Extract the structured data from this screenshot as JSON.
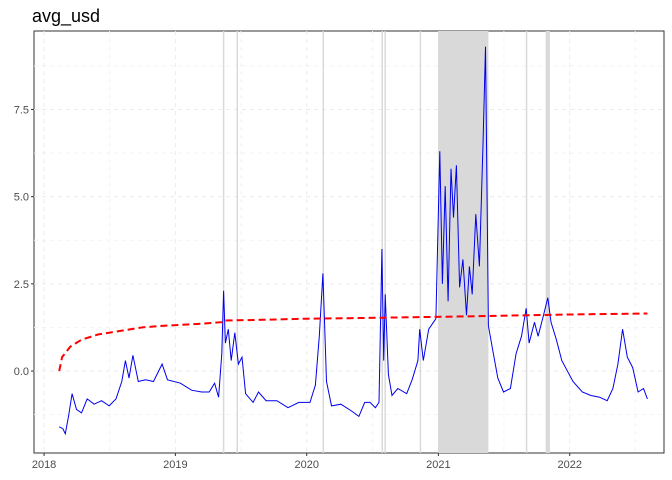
{
  "chart_data": {
    "type": "line",
    "title": "avg_usd",
    "xlabel": "",
    "ylabel": "",
    "x_range": [
      "2017-12-04",
      "2022-09-20"
    ],
    "ylim": [
      -2.35,
      9.75
    ],
    "grid": true,
    "legend": "none",
    "x_ticks": [
      "2018",
      "2019",
      "2020",
      "2021",
      "2022"
    ],
    "y_ticks": [
      "0.0",
      "2.5",
      "5.0",
      "7.5"
    ],
    "shaded_intervals": [
      [
        "2019-05-13",
        "2019-05-17"
      ],
      [
        "2019-06-20",
        "2019-06-24"
      ],
      [
        "2020-02-14",
        "2020-02-18"
      ],
      [
        "2020-07-27",
        "2020-07-31"
      ],
      [
        "2020-08-04",
        "2020-08-08"
      ],
      [
        "2020-11-10",
        "2020-11-14"
      ],
      [
        "2020-12-31",
        "2021-05-20"
      ],
      [
        "2021-09-01",
        "2021-09-05"
      ],
      [
        "2021-10-26",
        "2021-11-07"
      ]
    ],
    "series": [
      {
        "style": "solid",
        "color": "#0000ee",
        "points": [
          [
            "2018-02-12",
            -1.6
          ],
          [
            "2018-02-22",
            -1.65
          ],
          [
            "2018-03-01",
            -1.8
          ],
          [
            "2018-03-10",
            -1.3
          ],
          [
            "2018-03-20",
            -0.65
          ],
          [
            "2018-04-01",
            -1.1
          ],
          [
            "2018-04-15",
            -1.2
          ],
          [
            "2018-05-01",
            -0.8
          ],
          [
            "2018-05-20",
            -0.95
          ],
          [
            "2018-06-10",
            -0.85
          ],
          [
            "2018-07-01",
            -1.0
          ],
          [
            "2018-07-20",
            -0.8
          ],
          [
            "2018-08-05",
            -0.3
          ],
          [
            "2018-08-15",
            0.3
          ],
          [
            "2018-08-25",
            -0.2
          ],
          [
            "2018-09-05",
            0.45
          ],
          [
            "2018-09-20",
            -0.3
          ],
          [
            "2018-10-10",
            -0.25
          ],
          [
            "2018-11-01",
            -0.3
          ],
          [
            "2018-11-25",
            0.2
          ],
          [
            "2018-12-10",
            -0.25
          ],
          [
            "2019-01-15",
            -0.35
          ],
          [
            "2019-02-15",
            -0.55
          ],
          [
            "2019-03-15",
            -0.6
          ],
          [
            "2019-04-05",
            -0.6
          ],
          [
            "2019-04-20",
            -0.35
          ],
          [
            "2019-05-01",
            -0.75
          ],
          [
            "2019-05-10",
            0.5
          ],
          [
            "2019-05-15",
            2.3
          ],
          [
            "2019-05-20",
            0.8
          ],
          [
            "2019-05-28",
            1.2
          ],
          [
            "2019-06-05",
            0.3
          ],
          [
            "2019-06-15",
            1.1
          ],
          [
            "2019-06-25",
            0.2
          ],
          [
            "2019-07-05",
            0.4
          ],
          [
            "2019-07-15",
            -0.65
          ],
          [
            "2019-08-05",
            -0.9
          ],
          [
            "2019-08-20",
            -0.6
          ],
          [
            "2019-09-10",
            -0.85
          ],
          [
            "2019-10-10",
            -0.85
          ],
          [
            "2019-11-10",
            -1.05
          ],
          [
            "2019-12-10",
            -0.9
          ],
          [
            "2020-01-10",
            -0.9
          ],
          [
            "2020-01-25",
            -0.4
          ],
          [
            "2020-02-05",
            1.0
          ],
          [
            "2020-02-15",
            2.8
          ],
          [
            "2020-02-25",
            -0.3
          ],
          [
            "2020-03-10",
            -1.0
          ],
          [
            "2020-04-05",
            -0.95
          ],
          [
            "2020-05-05",
            -1.15
          ],
          [
            "2020-05-25",
            -1.3
          ],
          [
            "2020-06-10",
            -0.9
          ],
          [
            "2020-06-25",
            -0.9
          ],
          [
            "2020-07-10",
            -1.05
          ],
          [
            "2020-07-20",
            -0.9
          ],
          [
            "2020-07-28",
            3.5
          ],
          [
            "2020-08-02",
            0.3
          ],
          [
            "2020-08-06",
            2.2
          ],
          [
            "2020-08-15",
            -0.1
          ],
          [
            "2020-08-25",
            -0.7
          ],
          [
            "2020-09-10",
            -0.5
          ],
          [
            "2020-10-05",
            -0.65
          ],
          [
            "2020-10-20",
            -0.25
          ],
          [
            "2020-11-05",
            0.3
          ],
          [
            "2020-11-10",
            1.2
          ],
          [
            "2020-11-20",
            0.3
          ],
          [
            "2020-12-05",
            1.2
          ],
          [
            "2020-12-25",
            1.5
          ],
          [
            "2021-01-05",
            6.3
          ],
          [
            "2021-01-12",
            2.5
          ],
          [
            "2021-01-20",
            5.3
          ],
          [
            "2021-01-28",
            2.0
          ],
          [
            "2021-02-05",
            5.8
          ],
          [
            "2021-02-12",
            4.4
          ],
          [
            "2021-02-20",
            5.9
          ],
          [
            "2021-03-01",
            2.4
          ],
          [
            "2021-03-10",
            3.2
          ],
          [
            "2021-03-20",
            1.6
          ],
          [
            "2021-03-28",
            3.0
          ],
          [
            "2021-04-05",
            2.2
          ],
          [
            "2021-04-15",
            4.5
          ],
          [
            "2021-04-25",
            3.0
          ],
          [
            "2021-05-05",
            6.5
          ],
          [
            "2021-05-12",
            9.3
          ],
          [
            "2021-05-20",
            1.3
          ],
          [
            "2021-06-01",
            0.6
          ],
          [
            "2021-06-15",
            -0.2
          ],
          [
            "2021-07-01",
            -0.6
          ],
          [
            "2021-07-20",
            -0.5
          ],
          [
            "2021-08-05",
            0.5
          ],
          [
            "2021-08-20",
            1.0
          ],
          [
            "2021-09-02",
            1.8
          ],
          [
            "2021-09-10",
            0.8
          ],
          [
            "2021-09-25",
            1.4
          ],
          [
            "2021-10-05",
            1.0
          ],
          [
            "2021-10-20",
            1.6
          ],
          [
            "2021-11-01",
            2.1
          ],
          [
            "2021-11-10",
            1.4
          ],
          [
            "2021-11-25",
            0.9
          ],
          [
            "2021-12-10",
            0.3
          ],
          [
            "2022-01-10",
            -0.3
          ],
          [
            "2022-02-05",
            -0.6
          ],
          [
            "2022-03-01",
            -0.7
          ],
          [
            "2022-03-25",
            -0.75
          ],
          [
            "2022-04-15",
            -0.85
          ],
          [
            "2022-05-01",
            -0.5
          ],
          [
            "2022-05-15",
            0.2
          ],
          [
            "2022-05-28",
            1.2
          ],
          [
            "2022-06-10",
            0.4
          ],
          [
            "2022-06-25",
            0.1
          ],
          [
            "2022-07-10",
            -0.6
          ],
          [
            "2022-07-25",
            -0.5
          ],
          [
            "2022-08-05",
            -0.8
          ]
        ]
      },
      {
        "style": "dashed",
        "color": "#ff0000",
        "points": [
          [
            "2018-02-12",
            0.0
          ],
          [
            "2018-02-20",
            0.4
          ],
          [
            "2018-03-15",
            0.7
          ],
          [
            "2018-04-15",
            0.9
          ],
          [
            "2018-06-01",
            1.05
          ],
          [
            "2018-08-01",
            1.15
          ],
          [
            "2018-10-01",
            1.25
          ],
          [
            "2018-12-01",
            1.3
          ],
          [
            "2019-03-01",
            1.35
          ],
          [
            "2019-05-10",
            1.4
          ],
          [
            "2019-05-15",
            1.45
          ],
          [
            "2019-09-01",
            1.47
          ],
          [
            "2020-01-01",
            1.5
          ],
          [
            "2020-06-01",
            1.52
          ],
          [
            "2020-12-01",
            1.55
          ],
          [
            "2021-06-01",
            1.58
          ],
          [
            "2022-01-01",
            1.62
          ],
          [
            "2022-08-05",
            1.65
          ]
        ]
      }
    ]
  }
}
